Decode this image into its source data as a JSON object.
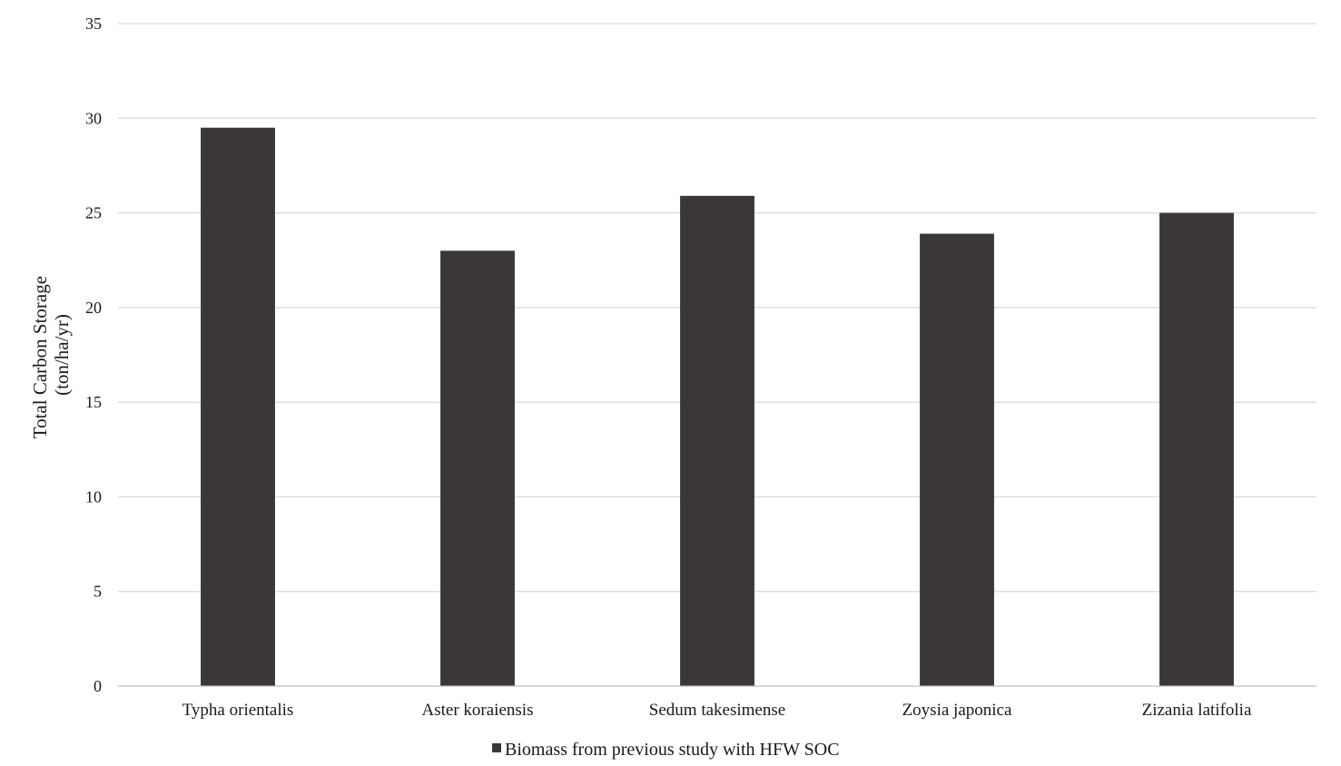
{
  "chart_data": {
    "type": "bar",
    "title": "",
    "xlabel": "",
    "ylabel": [
      "Total  Carbon Storage",
      "(ton/ha/yr)"
    ],
    "ylim": [
      0,
      35
    ],
    "yticks": [
      0,
      5,
      10,
      15,
      20,
      25,
      30,
      35
    ],
    "grid": true,
    "legend_position": "bottom",
    "categories": [
      "Typha orientalis",
      "Aster koraiensis",
      "Sedum takesimense",
      "Zoysia japonica",
      "Zizania latifolia"
    ],
    "series": [
      {
        "name": "Biomass from previous study with HFW SOC",
        "color": "#3b3738",
        "values": [
          29.5,
          23.0,
          25.9,
          23.9,
          25.0
        ]
      }
    ]
  }
}
